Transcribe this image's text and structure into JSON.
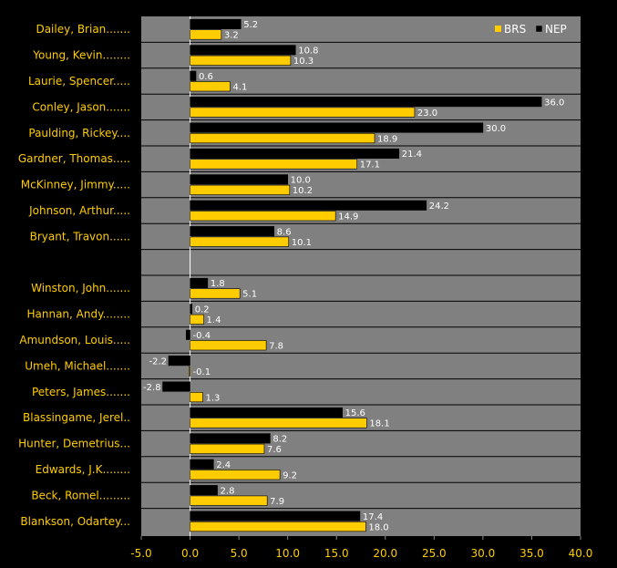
{
  "chart_data": {
    "type": "bar",
    "orientation": "horizontal",
    "categories": [
      "Dailey, Brian.......",
      "Young, Kevin........",
      "Laurie, Spencer.....",
      "Conley, Jason.......",
      "Paulding, Rickey....",
      "Gardner, Thomas.....",
      "McKinney, Jimmy.....",
      "Johnson, Arthur.....",
      "Bryant, Travon......",
      "",
      "Winston, John.......",
      "Hannan, Andy........",
      "Amundson, Louis.....",
      "Umeh, Michael.......",
      "Peters, James.......",
      "Blassingame, Jerel..",
      "Hunter, Demetrius...",
      "Edwards, J.K........",
      "Beck, Romel.........",
      "Blankson, Odartey..."
    ],
    "series": [
      {
        "name": "BRS",
        "color": "#FFCC00",
        "values": [
          3.2,
          10.3,
          4.1,
          23.0,
          18.9,
          17.1,
          10.2,
          14.9,
          10.1,
          null,
          5.1,
          1.4,
          7.8,
          -0.1,
          1.3,
          18.1,
          7.6,
          9.2,
          7.9,
          18.0
        ],
        "labels": [
          "3.2",
          "10.3",
          "4.1",
          "23.0",
          "18.9",
          "17.1",
          "10.2",
          "14.9",
          "10.1",
          "",
          "5.1",
          "1.4",
          "7.8",
          "-0.1",
          "1.3",
          "18.1",
          "7.6",
          "9.2",
          "7.9",
          "18.0"
        ]
      },
      {
        "name": "NEP",
        "color": "#000000",
        "values": [
          5.2,
          10.8,
          0.6,
          36.0,
          30.0,
          21.4,
          10.0,
          24.2,
          8.6,
          null,
          1.8,
          0.2,
          -0.4,
          -2.2,
          -2.8,
          15.6,
          8.2,
          2.4,
          2.8,
          17.4
        ],
        "labels": [
          "5.2",
          "10.8",
          "0.6",
          "36.0",
          "30.0",
          "21.4",
          "10.0",
          "24.2",
          "8.6",
          "",
          "1.8",
          "0.2",
          "-0.4",
          "-2.2",
          "-2.8",
          "15.6",
          "8.2",
          "2.4",
          "2.8",
          "17.4"
        ]
      }
    ],
    "xlim": [
      -5,
      40
    ],
    "xticks": [
      "-5.0",
      "0.0",
      "5.0",
      "10.0",
      "15.0",
      "20.0",
      "25.0",
      "30.0",
      "35.0",
      "40.0"
    ],
    "legend": "top-right",
    "colors": {
      "background": "#000000",
      "plot_area": "#808080",
      "label_text": "#FFCC00",
      "value_text": "#FFFFFF"
    }
  }
}
